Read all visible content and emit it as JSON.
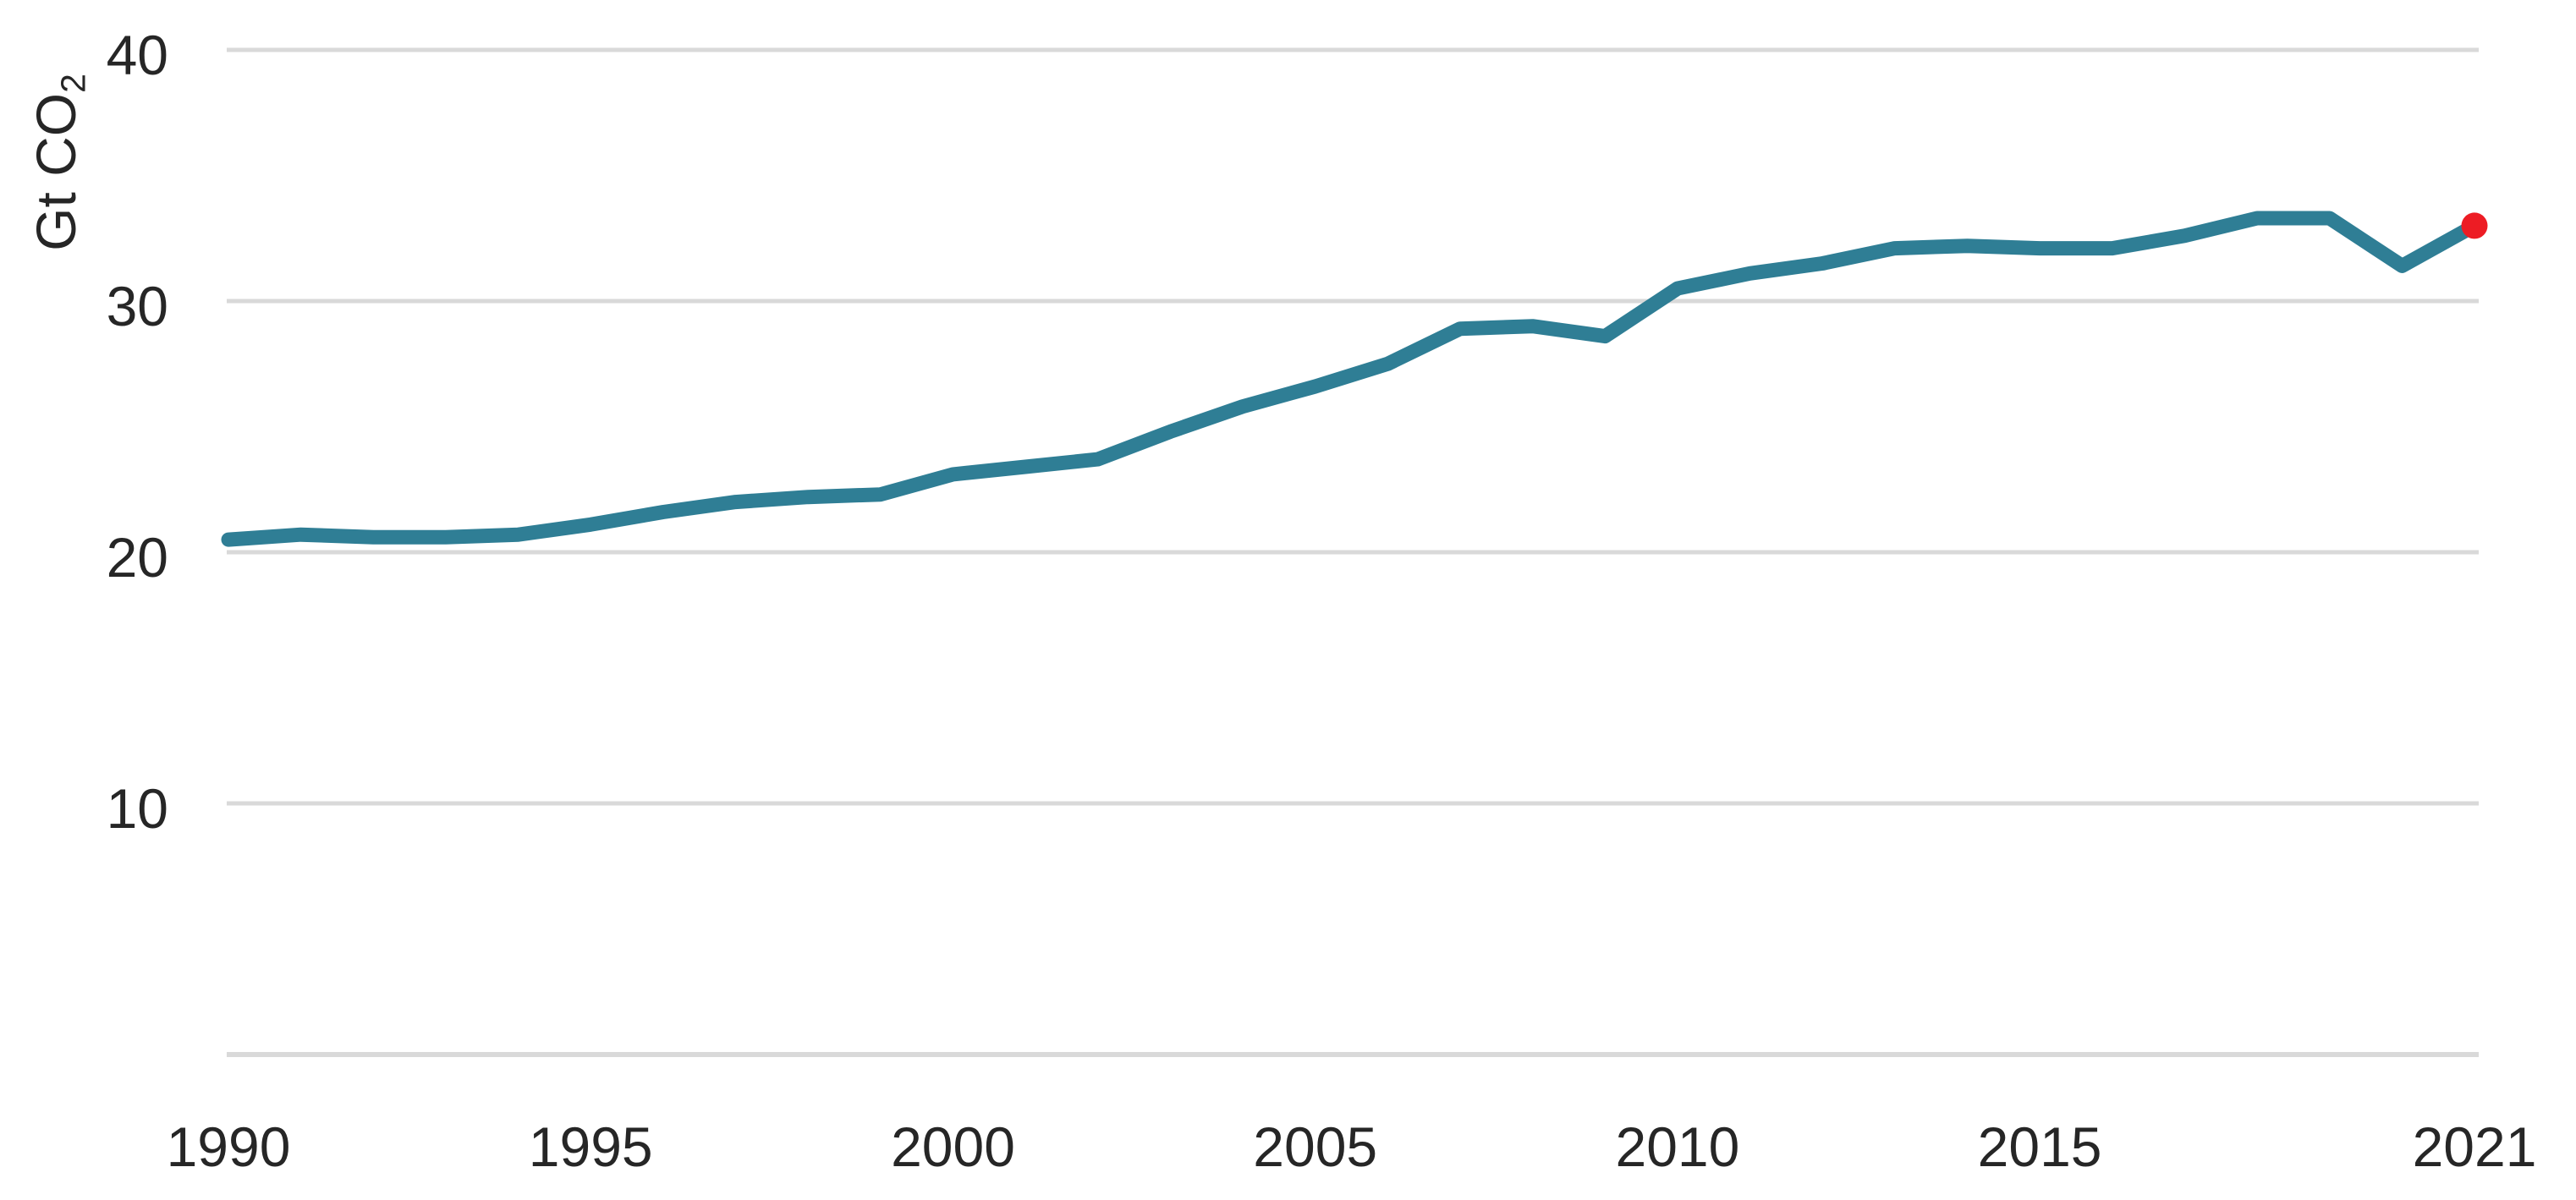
{
  "chart_data": {
    "type": "line",
    "title": "",
    "xlabel": "",
    "ylabel": "Gt CO₂",
    "ylabel_main": "Gt CO",
    "ylabel_sub": "2",
    "x": [
      1990,
      1991,
      1992,
      1993,
      1994,
      1995,
      1996,
      1997,
      1998,
      1999,
      2000,
      2001,
      2002,
      2003,
      2004,
      2005,
      2006,
      2007,
      2008,
      2009,
      2010,
      2011,
      2012,
      2013,
      2014,
      2015,
      2016,
      2017,
      2018,
      2019,
      2020,
      2021
    ],
    "values": [
      20.5,
      20.7,
      20.6,
      20.6,
      20.7,
      21.1,
      21.6,
      22.0,
      22.2,
      22.3,
      23.1,
      23.4,
      23.7,
      24.8,
      25.8,
      26.6,
      27.5,
      28.9,
      29.0,
      28.6,
      30.5,
      31.1,
      31.5,
      32.1,
      32.2,
      32.1,
      32.1,
      32.6,
      33.3,
      33.3,
      31.4,
      33.0
    ],
    "xlim": [
      1990,
      2021
    ],
    "ylim": [
      0,
      40
    ],
    "y_ticks": [
      40,
      30,
      20,
      10
    ],
    "y_tick_labels": [
      "40",
      "30",
      "20",
      "10"
    ],
    "y_gridline_values": [
      40,
      30,
      20,
      10,
      0
    ],
    "x_ticks": [
      1990,
      1995,
      2000,
      2005,
      2010,
      2015,
      2021
    ],
    "x_tick_labels": [
      "1990",
      "1995",
      "2000",
      "2005",
      "2010",
      "2015",
      "2021"
    ],
    "grid": "horizontal",
    "legend": "none",
    "highlight_last_point": true,
    "colors": {
      "line": "#2f7e95",
      "last_point": "#ed1c24",
      "gridline": "#d9d9d9",
      "text": "#262626",
      "background": "#ffffff"
    }
  }
}
